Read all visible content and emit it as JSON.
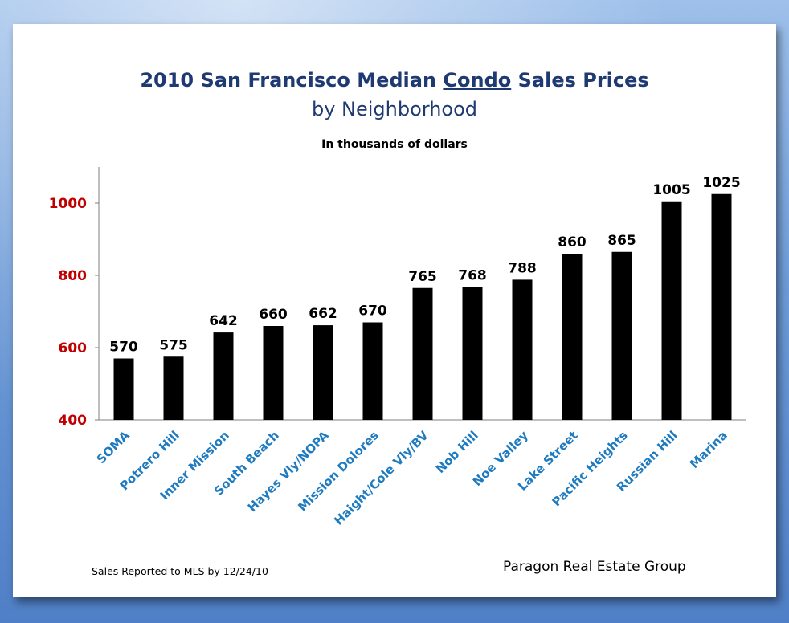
{
  "chart_data": {
    "type": "bar",
    "title_part1": "2010 San Francisco Median ",
    "title_emphasis": "Condo",
    "title_part2": " Sales Prices",
    "title_line2": "by Neighborhood",
    "subtitle": "In thousands  of dollars",
    "categories": [
      "SOMA",
      "Potrero Hill",
      "Inner Mission",
      "South Beach",
      "Hayes Vly/NOPA",
      "Mission Dolores",
      "Haight/Cole Vly/BV",
      "Nob Hill",
      "Noe Valley",
      "Lake Street",
      "Pacific Heights",
      "Russian Hill",
      "Marina"
    ],
    "values": [
      570,
      575,
      642,
      660,
      662,
      670,
      765,
      768,
      788,
      860,
      865,
      1005,
      1025
    ],
    "ylim": [
      400,
      1100
    ],
    "yticks": [
      400,
      600,
      800,
      1000
    ],
    "grid": false,
    "colors": {
      "bar": "#000000",
      "ytick": "#c00000",
      "xtick": "#1f7bc0",
      "title": "#1f3a73"
    }
  },
  "footnotes": {
    "left": "Sales Reported to MLS by 12/24/10",
    "right": "Paragon Real Estate Group"
  }
}
